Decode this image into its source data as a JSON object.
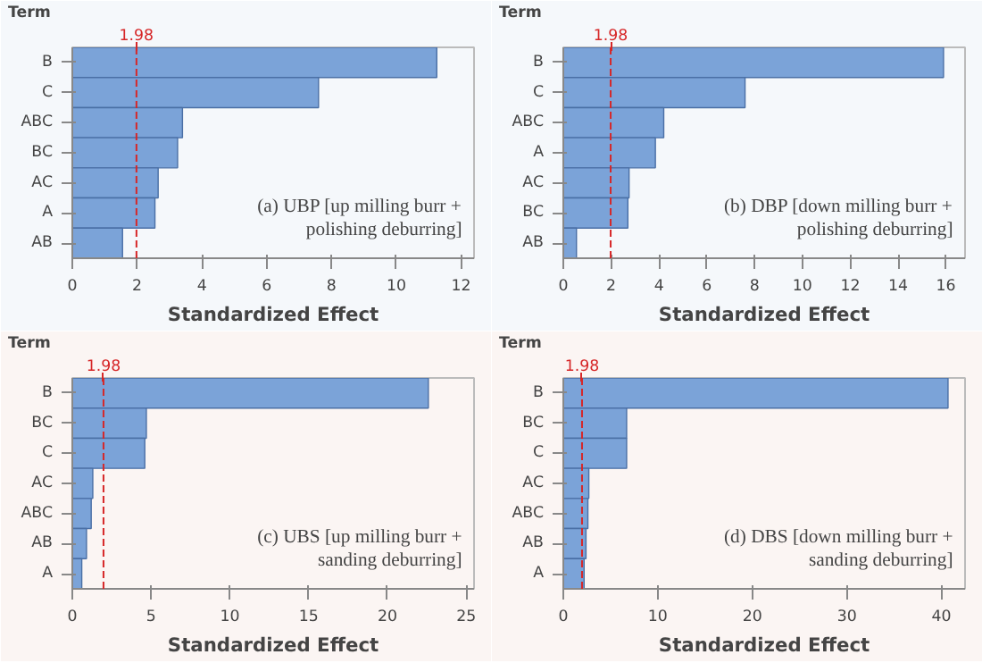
{
  "chart_data": [
    {
      "type": "bar",
      "orientation": "horizontal",
      "ylabel": "Term",
      "xlabel": "Standardized Effect",
      "categories": [
        "B",
        "C",
        "ABC",
        "BC",
        "AC",
        "A",
        "AB"
      ],
      "values": [
        11.25,
        7.6,
        3.4,
        3.25,
        2.65,
        2.55,
        1.55
      ],
      "color": "#7ba3d8",
      "xlim": [
        0,
        12.4
      ],
      "xticks": [
        0,
        2,
        4,
        6,
        8,
        10,
        12
      ],
      "ref_lines": [
        {
          "axis": "x",
          "value": 1.98,
          "label": "1.98",
          "color": "#d62728",
          "line_style": "dashed"
        }
      ],
      "annotations": [
        "(a) UBP [up milling burr + polishing deburring]"
      ],
      "grid": false
    },
    {
      "type": "bar",
      "orientation": "horizontal",
      "ylabel": "Term",
      "xlabel": "Standardized Effect",
      "categories": [
        "B",
        "C",
        "ABC",
        "A",
        "AC",
        "BC",
        "AB"
      ],
      "values": [
        15.9,
        7.6,
        4.2,
        3.85,
        2.75,
        2.7,
        0.55
      ],
      "color": "#7ba3d8",
      "xlim": [
        0,
        16.8
      ],
      "xticks": [
        0,
        2,
        4,
        6,
        8,
        10,
        12,
        14,
        16
      ],
      "ref_lines": [
        {
          "axis": "x",
          "value": 1.98,
          "label": "1.98",
          "color": "#d62728",
          "line_style": "dashed"
        }
      ],
      "annotations": [
        "(b) DBP [down milling burr + polishing deburring]"
      ],
      "grid": false
    },
    {
      "type": "bar",
      "orientation": "horizontal",
      "ylabel": "Term",
      "xlabel": "Standardized Effect",
      "categories": [
        "B",
        "BC",
        "C",
        "AC",
        "ABC",
        "AB",
        "A"
      ],
      "values": [
        22.6,
        4.7,
        4.6,
        1.3,
        1.2,
        0.9,
        0.6
      ],
      "color": "#7ba3d8",
      "xlim": [
        0,
        25.5
      ],
      "xticks": [
        0,
        5,
        10,
        15,
        20,
        25
      ],
      "ref_lines": [
        {
          "axis": "x",
          "value": 1.98,
          "label": "1.98",
          "color": "#d62728",
          "line_style": "dashed"
        }
      ],
      "annotations": [
        "(c) UBS [up milling burr + sanding deburring]"
      ],
      "grid": false
    },
    {
      "type": "bar",
      "orientation": "horizontal",
      "ylabel": "Term",
      "xlabel": "Standardized Effect",
      "categories": [
        "B",
        "BC",
        "C",
        "AC",
        "ABC",
        "AB",
        "A"
      ],
      "values": [
        40.7,
        6.7,
        6.7,
        2.7,
        2.6,
        2.4,
        2.2
      ],
      "color": "#7ba3d8",
      "xlim": [
        0,
        42.5
      ],
      "xticks": [
        0,
        10,
        20,
        30,
        40
      ],
      "ref_lines": [
        {
          "axis": "x",
          "value": 1.98,
          "label": "1.98",
          "color": "#d62728",
          "line_style": "dashed"
        }
      ],
      "annotations": [
        "(d) DBS [down milling burr + sanding deburring]"
      ],
      "grid": false
    }
  ]
}
